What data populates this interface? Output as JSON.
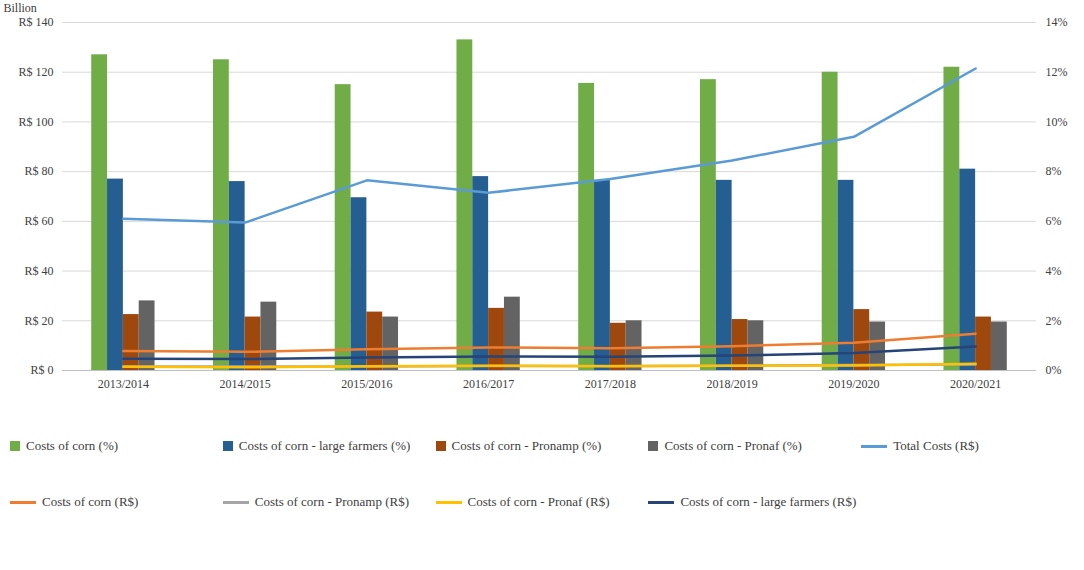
{
  "chart_data": {
    "type": "bar",
    "y_label": "Billion",
    "categories": [
      "2013/2014",
      "2014/2015",
      "2015/2016",
      "2016/2017",
      "2017/2018",
      "2018/2019",
      "2019/2020",
      "2020/2021"
    ],
    "ylim": [
      0,
      140
    ],
    "yticks": [
      {
        "value": 0,
        "label": "R$ 0"
      },
      {
        "value": 20,
        "label": "R$ 20"
      },
      {
        "value": 40,
        "label": "R$ 40"
      },
      {
        "value": 60,
        "label": "R$ 60"
      },
      {
        "value": 80,
        "label": "R$ 80"
      },
      {
        "value": 100,
        "label": "R$ 100"
      },
      {
        "value": 120,
        "label": "R$ 120"
      },
      {
        "value": 140,
        "label": "R$ 140"
      }
    ],
    "y2lim": [
      0,
      14
    ],
    "y2ticks": [
      {
        "value": 0,
        "label": "0%"
      },
      {
        "value": 2,
        "label": "2%"
      },
      {
        "value": 4,
        "label": "4%"
      },
      {
        "value": 6,
        "label": "6%"
      },
      {
        "value": 8,
        "label": "8%"
      },
      {
        "value": 10,
        "label": "10%"
      },
      {
        "value": 12,
        "label": "12%"
      },
      {
        "value": 14,
        "label": "14%"
      }
    ],
    "grid": true,
    "legend": "bottom",
    "series": [
      {
        "name": "Costs of corn (%)",
        "type": "bar",
        "axis": "y2",
        "color": "#70ad47",
        "values": [
          12.7,
          12.5,
          11.5,
          13.3,
          11.55,
          11.7,
          12.0,
          12.2
        ]
      },
      {
        "name": "Costs of corn - large farmers (%)",
        "type": "bar",
        "axis": "y2",
        "color": "#255e91",
        "values": [
          7.7,
          7.6,
          6.95,
          7.8,
          7.65,
          7.65,
          7.65,
          8.1
        ]
      },
      {
        "name": "Costs of corn - Pronamp (%)",
        "type": "bar",
        "axis": "y2",
        "color": "#9e480e",
        "values": [
          2.25,
          2.15,
          2.35,
          2.5,
          1.9,
          2.05,
          2.45,
          2.15
        ]
      },
      {
        "name": "Costs of corn - Pronaf (%)",
        "type": "bar",
        "axis": "y2",
        "color": "#636363",
        "values": [
          2.8,
          2.75,
          2.15,
          2.95,
          2.0,
          2.0,
          1.95,
          1.95
        ]
      },
      {
        "name": "Total Costs (R$)",
        "type": "line",
        "color": "#5b9bd5",
        "values": [
          61,
          59.5,
          76.5,
          71.5,
          77,
          84.5,
          94,
          121.5
        ]
      },
      {
        "name": "Costs of corn (R$)",
        "type": "line",
        "color": "#ed7d31",
        "values": [
          7.8,
          7.5,
          8.5,
          9.3,
          9.0,
          9.8,
          11.2,
          14.8
        ]
      },
      {
        "name": "Costs of corn - Pronamp (R$)",
        "type": "line",
        "color": "#a5a5a5",
        "values": [
          1.6,
          1.6,
          1.6,
          1.8,
          1.8,
          1.9,
          2.2,
          2.4
        ]
      },
      {
        "name": "Costs of corn - Pronaf (R$)",
        "type": "line",
        "color": "#ffc000",
        "values": [
          1.5,
          1.3,
          1.7,
          1.9,
          1.7,
          1.9,
          2.0,
          2.7
        ]
      },
      {
        "name": "Costs of corn - large farmers (R$)",
        "type": "line",
        "color": "#264478",
        "values": [
          4.7,
          4.6,
          5.2,
          5.6,
          5.5,
          6.0,
          7.0,
          9.7
        ]
      }
    ]
  }
}
